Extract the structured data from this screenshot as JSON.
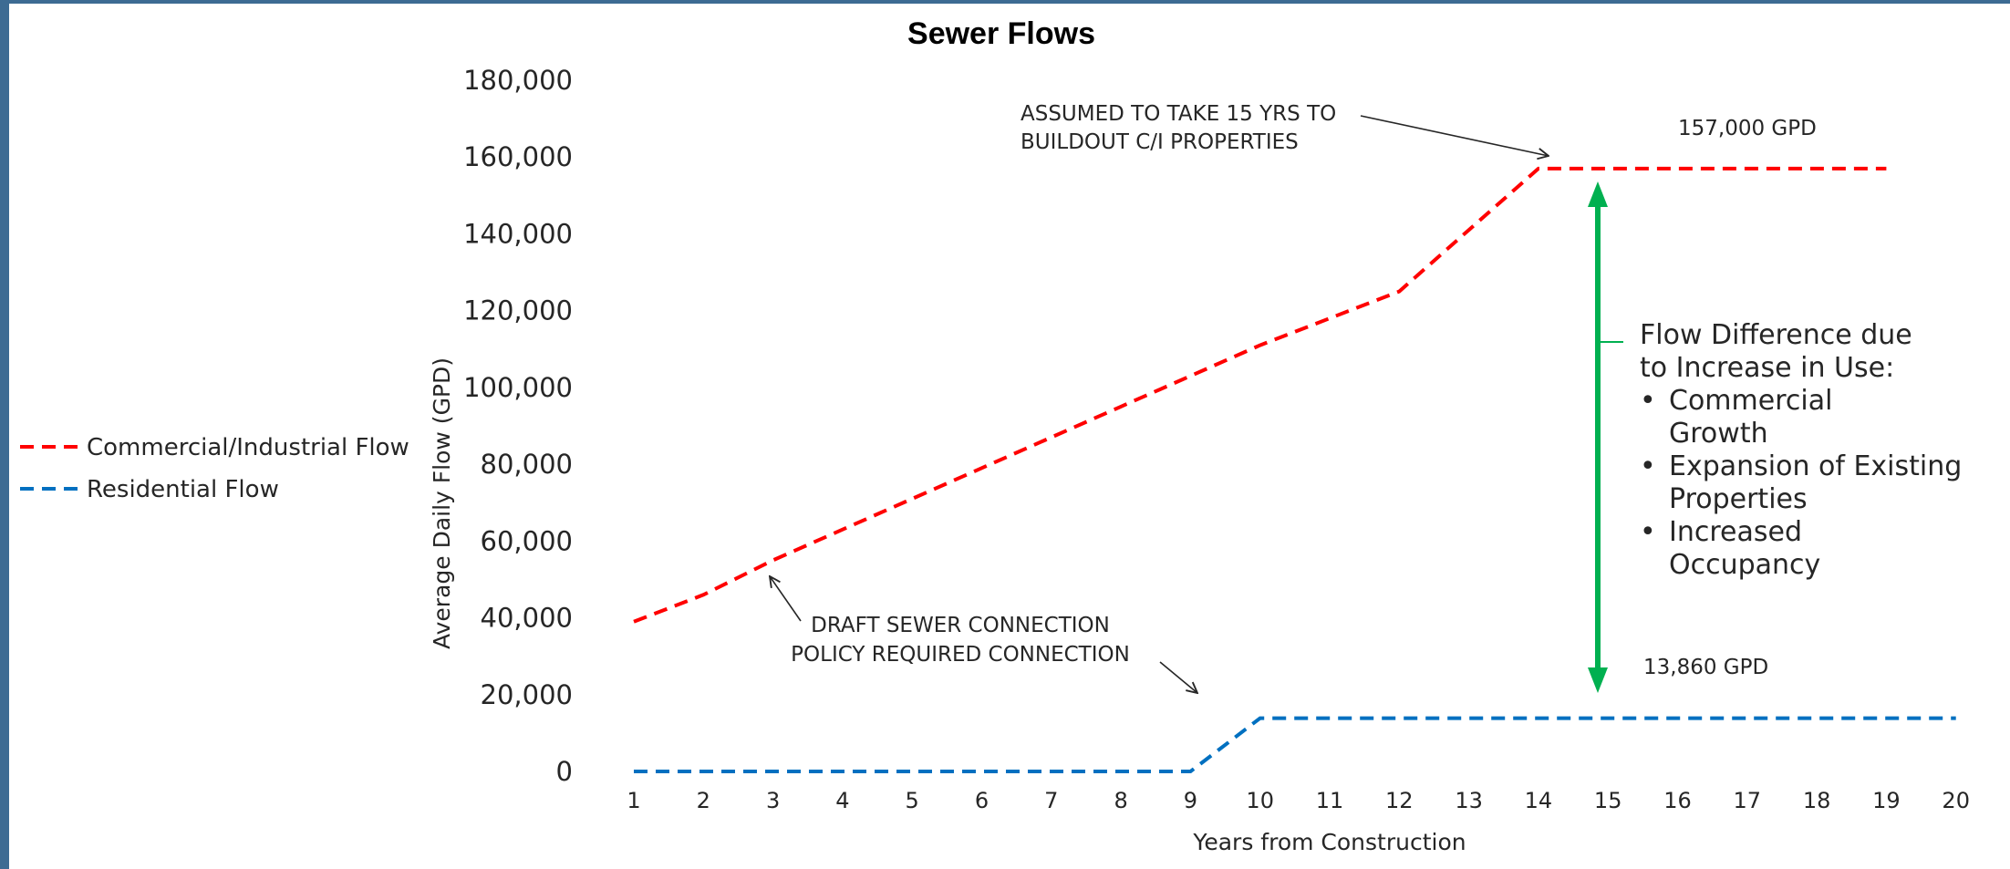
{
  "chart_data": {
    "type": "line",
    "title": "Sewer Flows",
    "xlabel": "Years from Construction",
    "ylabel": "Average Daily Flow (GPD)",
    "ylim": [
      0,
      180000
    ],
    "y_ticks": [
      0,
      20000,
      40000,
      60000,
      80000,
      100000,
      120000,
      140000,
      160000,
      180000
    ],
    "y_tick_labels": [
      "0",
      "20,000",
      "40,000",
      "60,000",
      "80,000",
      "100,000",
      "120,000",
      "140,000",
      "160,000",
      "180,000"
    ],
    "x_ticks": [
      "1",
      "2",
      "3",
      "4",
      "5",
      "6",
      "7",
      "8",
      "9",
      "10",
      "11",
      "12",
      "13",
      "14",
      "15",
      "16",
      "17",
      "18",
      "19",
      "20"
    ],
    "grid": false,
    "legend_position": "left",
    "series": [
      {
        "name": "Commercial/Industrial Flow",
        "color": "#ff0000",
        "style": "dashed",
        "x": [
          1,
          2,
          3,
          4,
          5,
          6,
          7,
          8,
          9,
          10,
          11,
          12,
          13,
          14,
          15,
          16,
          17,
          18,
          19
        ],
        "y": [
          39000,
          46000,
          55000,
          63000,
          71000,
          79000,
          87000,
          95000,
          103000,
          111000,
          118000,
          125000,
          141000,
          157000,
          157000,
          157000,
          157000,
          157000,
          157000
        ]
      },
      {
        "name": "Residential Flow",
        "color": "#0070c0",
        "style": "dashed",
        "x": [
          1,
          2,
          3,
          4,
          5,
          6,
          7,
          8,
          9,
          10,
          11,
          12,
          13,
          14,
          15,
          16,
          17,
          18,
          19,
          20
        ],
        "y": [
          0,
          0,
          0,
          0,
          0,
          0,
          0,
          0,
          0,
          13860,
          13860,
          13860,
          13860,
          13860,
          13860,
          13860,
          13860,
          13860,
          13860,
          13860
        ]
      }
    ],
    "annotations": {
      "buildout_line1": "ASSUMED TO TAKE 15 YRS TO",
      "buildout_line2": "BUILDOUT C/I PROPERTIES",
      "ci_value": "157,000 GPD",
      "policy_line1": "DRAFT SEWER CONNECTION",
      "policy_line2": "POLICY REQUIRED CONNECTION",
      "res_value": "13,860 GPD",
      "diff_line1": "Flow Difference due",
      "diff_line2": "to Increase in Use:",
      "bullet": "•",
      "bullet1_line1": "Commercial",
      "bullet1_line2": "Growth",
      "bullet2_line1": "Expansion of Existing",
      "bullet2_line2": "Properties",
      "bullet3_line1": "Increased",
      "bullet3_line2": "Occupancy",
      "arrow_color": "#00b050"
    }
  }
}
